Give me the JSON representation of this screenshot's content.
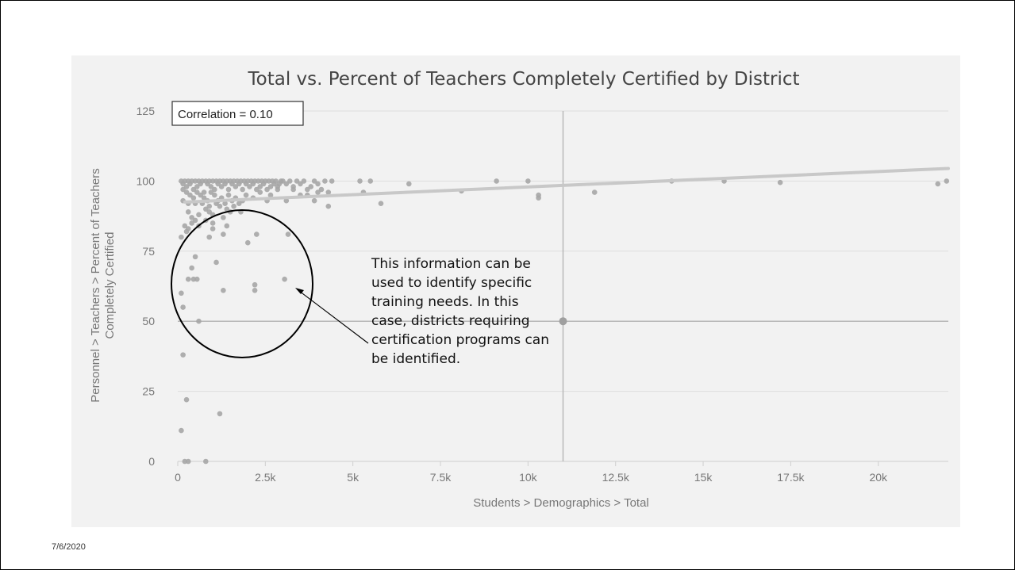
{
  "date": "7/6/2020",
  "annotation": "This information can be used to identify specific training needs. In this case, districts requiring certification programs can be identified.",
  "chart_data": {
    "type": "scatter",
    "title": "Total vs. Percent of Teachers Completely Certified by District",
    "xlabel": "Students > Demographics > Total",
    "ylabel": [
      "Personnel > Teachers > Percent of Teachers",
      "Completely Certified"
    ],
    "correlation_label": "Correlation = 0.10",
    "xlim": [
      0,
      22000
    ],
    "ylim": [
      0,
      125
    ],
    "x_ticks": [
      0,
      2500,
      5000,
      7500,
      10000,
      12500,
      15000,
      17500,
      20000
    ],
    "x_tick_labels": [
      "0",
      "2.5k",
      "5k",
      "7.5k",
      "10k",
      "12.5k",
      "15k",
      "17.5k",
      "20k"
    ],
    "y_ticks": [
      0,
      25,
      50,
      75,
      100,
      125
    ],
    "y_tick_labels": [
      "0",
      "25",
      "50",
      "75",
      "100",
      "125"
    ],
    "grid": true,
    "mean_lines": {
      "x": 11000,
      "y": 50
    },
    "trend_line": {
      "x": [
        200,
        22000
      ],
      "y": [
        92.5,
        104.5
      ]
    },
    "colors": {
      "point": "#a6a6a6",
      "trend": "#c8c8c8",
      "grid": "#dedede",
      "mean": "#b8b8b8",
      "text": "#777777",
      "title": "#444444"
    },
    "points": [
      [
        100,
        100
      ],
      [
        150,
        99
      ],
      [
        200,
        100
      ],
      [
        250,
        98
      ],
      [
        300,
        100
      ],
      [
        350,
        99
      ],
      [
        400,
        100
      ],
      [
        450,
        97
      ],
      [
        500,
        100
      ],
      [
        550,
        98
      ],
      [
        600,
        100
      ],
      [
        650,
        99
      ],
      [
        700,
        100
      ],
      [
        750,
        96
      ],
      [
        800,
        100
      ],
      [
        850,
        99
      ],
      [
        900,
        100
      ],
      [
        950,
        98
      ],
      [
        1000,
        100
      ],
      [
        1050,
        97
      ],
      [
        1100,
        100
      ],
      [
        1150,
        99
      ],
      [
        1200,
        100
      ],
      [
        1250,
        98
      ],
      [
        1300,
        100
      ],
      [
        1350,
        99
      ],
      [
        1400,
        100
      ],
      [
        1450,
        97
      ],
      [
        1500,
        100
      ],
      [
        1550,
        99
      ],
      [
        1600,
        100
      ],
      [
        1650,
        98
      ],
      [
        1700,
        100
      ],
      [
        1750,
        99
      ],
      [
        1800,
        100
      ],
      [
        1850,
        97
      ],
      [
        1900,
        100
      ],
      [
        1950,
        99
      ],
      [
        2000,
        100
      ],
      [
        2050,
        98
      ],
      [
        2100,
        100
      ],
      [
        2150,
        99
      ],
      [
        2200,
        100
      ],
      [
        2250,
        97
      ],
      [
        2300,
        100
      ],
      [
        2350,
        98
      ],
      [
        2400,
        100
      ],
      [
        2450,
        99
      ],
      [
        2500,
        100
      ],
      [
        2550,
        97
      ],
      [
        2600,
        100
      ],
      [
        2650,
        98
      ],
      [
        2700,
        100
      ],
      [
        2750,
        99
      ],
      [
        2800,
        100
      ],
      [
        2850,
        98
      ],
      [
        2900,
        99
      ],
      [
        2950,
        100
      ],
      [
        150,
        97
      ],
      [
        250,
        96
      ],
      [
        350,
        95
      ],
      [
        450,
        94
      ],
      [
        550,
        96
      ],
      [
        650,
        95
      ],
      [
        750,
        94
      ],
      [
        850,
        93
      ],
      [
        950,
        96
      ],
      [
        1050,
        95
      ],
      [
        1150,
        93
      ],
      [
        1250,
        94
      ],
      [
        1350,
        92
      ],
      [
        1450,
        95
      ],
      [
        1550,
        93
      ],
      [
        1650,
        94
      ],
      [
        1750,
        92
      ],
      [
        1850,
        93
      ],
      [
        1950,
        95
      ],
      [
        2150,
        94
      ],
      [
        2350,
        96
      ],
      [
        2550,
        93
      ],
      [
        2650,
        95
      ],
      [
        2850,
        97
      ],
      [
        150,
        93
      ],
      [
        300,
        92
      ],
      [
        500,
        92
      ],
      [
        700,
        92
      ],
      [
        900,
        91
      ],
      [
        1100,
        92
      ],
      [
        300,
        89
      ],
      [
        400,
        87
      ],
      [
        500,
        86
      ],
      [
        600,
        88
      ],
      [
        800,
        90
      ],
      [
        900,
        89
      ],
      [
        1000,
        88
      ],
      [
        1200,
        91
      ],
      [
        1400,
        90
      ],
      [
        1600,
        91
      ],
      [
        1800,
        89
      ],
      [
        200,
        84
      ],
      [
        300,
        83
      ],
      [
        400,
        85
      ],
      [
        600,
        84
      ],
      [
        800,
        86
      ],
      [
        1000,
        85
      ],
      [
        1300,
        87
      ],
      [
        1500,
        89
      ],
      [
        100,
        80
      ],
      [
        250,
        82
      ],
      [
        900,
        80
      ],
      [
        1000,
        83
      ],
      [
        1300,
        81
      ],
      [
        1400,
        84
      ],
      [
        2000,
        78
      ],
      [
        2250,
        81
      ],
      [
        3150,
        81
      ],
      [
        500,
        73
      ],
      [
        1100,
        71
      ],
      [
        400,
        69
      ],
      [
        450,
        65
      ],
      [
        550,
        65
      ],
      [
        300,
        65
      ],
      [
        1300,
        61
      ],
      [
        2200,
        63
      ],
      [
        2200,
        61
      ],
      [
        3050,
        65
      ],
      [
        100,
        60
      ],
      [
        150,
        55
      ],
      [
        600,
        50
      ],
      [
        150,
        38
      ],
      [
        250,
        22
      ],
      [
        1200,
        17
      ],
      [
        100,
        11
      ],
      [
        200,
        0
      ],
      [
        300,
        0
      ],
      [
        800,
        0
      ],
      [
        3000,
        100
      ],
      [
        3100,
        99
      ],
      [
        3200,
        100
      ],
      [
        3300,
        98
      ],
      [
        3400,
        100
      ],
      [
        3500,
        99
      ],
      [
        3600,
        100
      ],
      [
        3700,
        97
      ],
      [
        3800,
        98
      ],
      [
        3900,
        100
      ],
      [
        4000,
        99
      ],
      [
        4100,
        97
      ],
      [
        4200,
        100
      ],
      [
        4300,
        96
      ],
      [
        4400,
        100
      ],
      [
        3100,
        93
      ],
      [
        3300,
        97
      ],
      [
        3500,
        95
      ],
      [
        3700,
        95
      ],
      [
        3900,
        93
      ],
      [
        4000,
        96
      ],
      [
        4300,
        91
      ],
      [
        5200,
        100
      ],
      [
        5300,
        96
      ],
      [
        5500,
        100
      ],
      [
        5800,
        92
      ],
      [
        6600,
        99
      ],
      [
        8100,
        96.5
      ],
      [
        9100,
        100
      ],
      [
        10000,
        100
      ],
      [
        10300,
        95
      ],
      [
        10300,
        94
      ],
      [
        11900,
        96
      ],
      [
        14100,
        100
      ],
      [
        15600,
        100
      ],
      [
        17200,
        99.5
      ],
      [
        21700,
        99
      ],
      [
        21950,
        100
      ]
    ]
  }
}
